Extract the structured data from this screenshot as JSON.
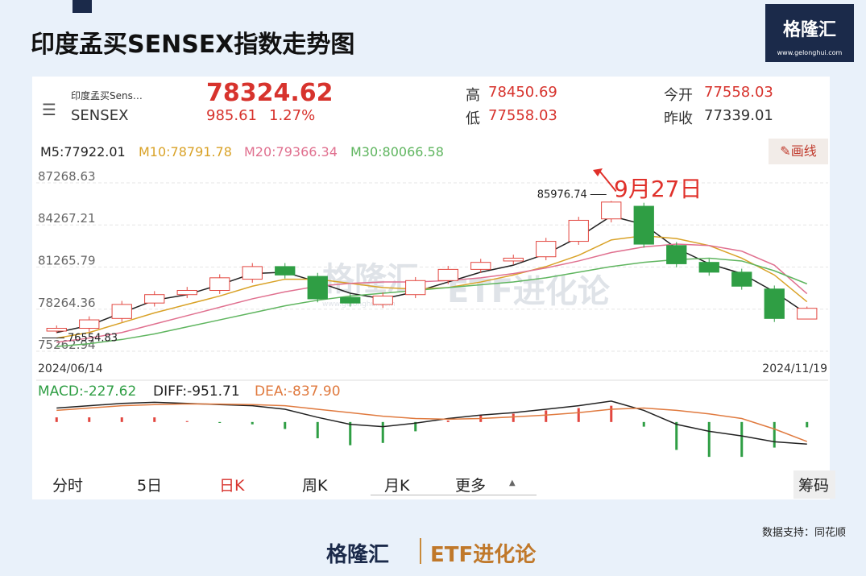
{
  "header": {
    "title": "印度孟买SENSEX指数走势图",
    "logo": {
      "name": "格隆汇",
      "url": "www.gelonghui.com"
    }
  },
  "quote": {
    "short_name": "印度孟买Sens…",
    "code": "SENSEX",
    "price": 78324.62,
    "change": 985.61,
    "change_pct": "1.27%",
    "high_label": "高",
    "high": 78450.69,
    "low_label": "低",
    "low": 77558.03,
    "open_label": "今开",
    "open": 77558.03,
    "prev_close_label": "昨收",
    "prev_close": 77339.01
  },
  "draw_button": "画线",
  "watermark": {
    "brand": "格隆汇",
    "sub": "www.gelonghui.com",
    "name": "ETF进化论"
  },
  "chart_data": [
    {
      "type": "candlestick",
      "up_color": "#e2463f",
      "down_color": "#2f9e44",
      "ylim": [
        75262.94,
        87268.63
      ],
      "yticks": [
        75262.94,
        78264.36,
        81265.79,
        84267.21,
        87268.63
      ],
      "grid": true,
      "x_labels": [
        "2024/06/14",
        "2024/11/19"
      ],
      "open": [
        76700,
        76900,
        77600,
        78700,
        79300,
        79600,
        80400,
        81300,
        80600,
        79100,
        78600,
        79300,
        80300,
        81100,
        81700,
        82000,
        83100,
        84700,
        85600,
        82800,
        81600,
        80900,
        79700,
        77558.03
      ],
      "high": [
        77100,
        77750,
        78850,
        79550,
        79850,
        80750,
        81550,
        81550,
        80850,
        79350,
        79450,
        80550,
        81350,
        81850,
        82150,
        83350,
        84850,
        85976.74,
        85850,
        83050,
        81850,
        81150,
        79950,
        78450.69
      ],
      "low": [
        76554.83,
        76650,
        77350,
        78450,
        79050,
        79350,
        80150,
        80450,
        78750,
        78450,
        78350,
        79050,
        80050,
        80850,
        81450,
        81750,
        82850,
        84450,
        82650,
        81250,
        80650,
        79650,
        77350,
        77558.03
      ],
      "close": [
        76900,
        77500,
        78600,
        79300,
        79600,
        80500,
        81300,
        80700,
        79000,
        78700,
        79200,
        80300,
        81100,
        81600,
        81900,
        83100,
        84600,
        85900,
        82900,
        81500,
        80900,
        79900,
        77600,
        78324.62
      ],
      "series": [
        {
          "name": "M5:77922.01",
          "color": "#222222",
          "values": [
            76600,
            77100,
            78000,
            78900,
            79300,
            80000,
            80800,
            80900,
            80200,
            79400,
            79000,
            79500,
            80200,
            80900,
            81400,
            82200,
            83400,
            84900,
            84300,
            82600,
            81500,
            80800,
            79500,
            77922.01
          ]
        },
        {
          "name": "M10:78791.78",
          "color": "#d9a227",
          "values": [
            76200,
            76600,
            77300,
            78000,
            78600,
            79200,
            79900,
            80400,
            80400,
            80100,
            79800,
            79700,
            79800,
            80200,
            80700,
            81300,
            82100,
            83200,
            83500,
            83300,
            82800,
            81900,
            80700,
            78791.78
          ]
        },
        {
          "name": "M20:79366.34",
          "color": "#e0708f",
          "values": [
            75900,
            76200,
            76600,
            77200,
            77800,
            78400,
            79000,
            79500,
            79900,
            80100,
            80200,
            80200,
            80300,
            80500,
            80800,
            81200,
            81700,
            82300,
            82700,
            82900,
            82800,
            82400,
            81400,
            79366.34
          ]
        },
        {
          "name": "M30:80066.58",
          "color": "#5fb55f",
          "values": [
            75600,
            75800,
            76100,
            76500,
            77000,
            77500,
            78000,
            78500,
            78900,
            79200,
            79400,
            79600,
            79800,
            80000,
            80200,
            80500,
            80900,
            81300,
            81600,
            81800,
            81900,
            81700,
            81000,
            80066.58
          ]
        }
      ],
      "annotations": [
        {
          "text": "85976.74"
        },
        {
          "text": "76554.83"
        },
        {
          "text": "9月27日"
        }
      ]
    },
    {
      "type": "macd",
      "ylim": [
        -1600,
        1000
      ],
      "up_color": "#e2463f",
      "down_color": "#2f9e44",
      "series": [
        {
          "name": "MACD:-227.62",
          "color": "#2f9e44",
          "values": [
            200,
            200,
            200,
            200,
            40,
            -40,
            -100,
            -300,
            -700,
            -1000,
            -900,
            -400,
            60,
            300,
            360,
            500,
            600,
            700,
            -200,
            -1200,
            -1500,
            -1500,
            -1100,
            -227.62
          ]
        },
        {
          "name": "DIFF:-951.71",
          "color": "#222222",
          "values": [
            600,
            700,
            800,
            850,
            800,
            750,
            700,
            550,
            200,
            -100,
            -200,
            -50,
            150,
            300,
            400,
            550,
            700,
            900,
            500,
            -100,
            -400,
            -600,
            -850,
            -951.71
          ]
        },
        {
          "name": "DEA:-837.90",
          "color": "#e07a3f",
          "values": [
            500,
            600,
            700,
            750,
            780,
            770,
            750,
            700,
            550,
            400,
            250,
            150,
            120,
            150,
            220,
            300,
            400,
            550,
            600,
            500,
            350,
            150,
            -300,
            -837.9
          ]
        }
      ]
    }
  ],
  "tabs": [
    "分时",
    "5日",
    "日K",
    "周K",
    "月K",
    "更多",
    "筹码"
  ],
  "active_tab": 2,
  "source": "数据支持：同花顺",
  "footer": {
    "brand": "格隆汇",
    "name": "ETF进化论"
  }
}
